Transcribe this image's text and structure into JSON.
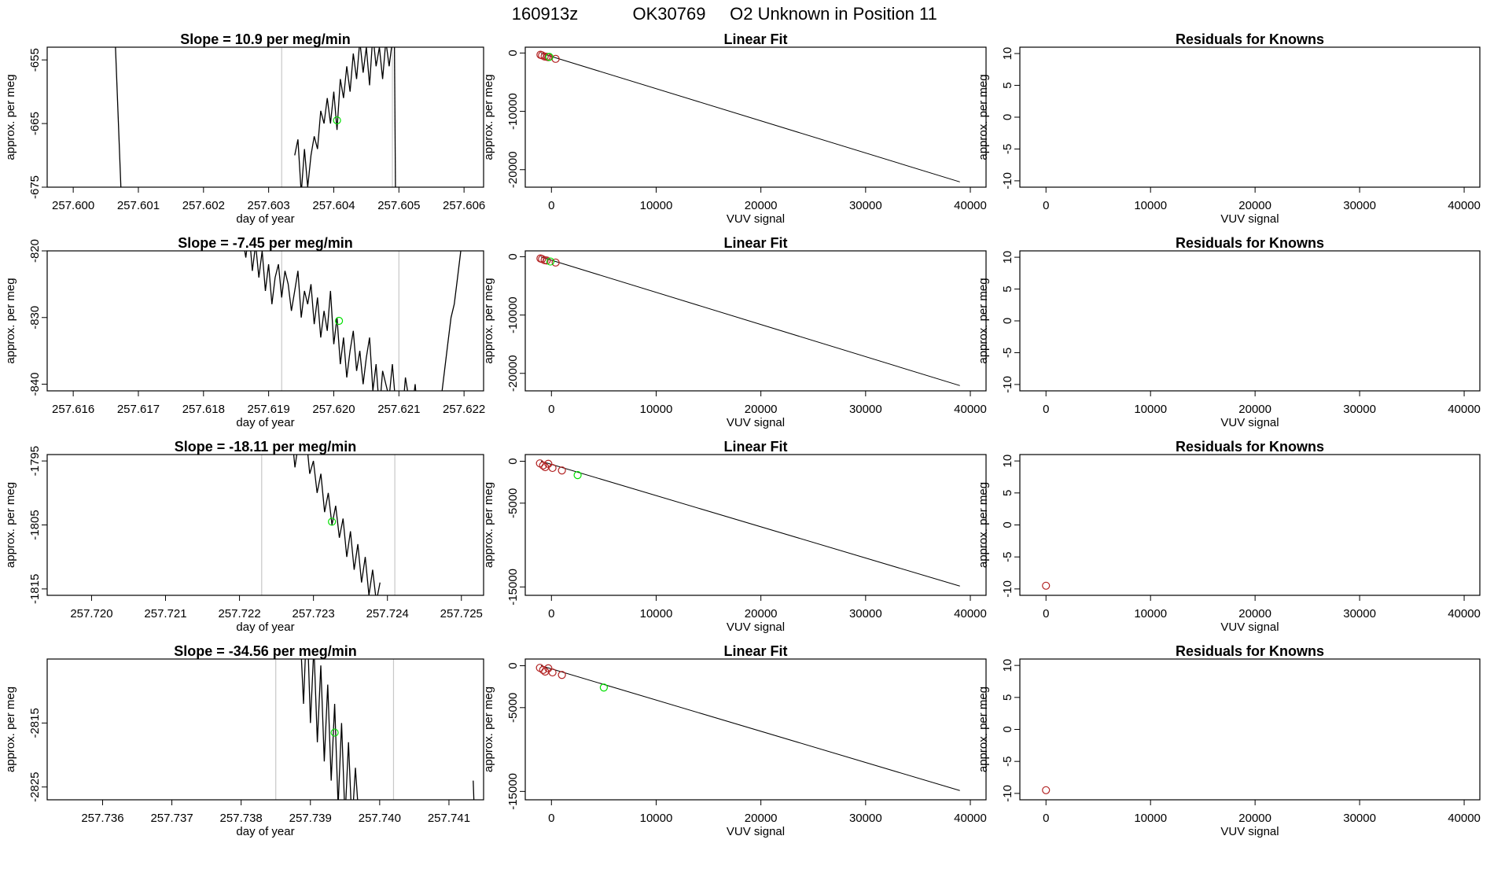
{
  "header": {
    "date": "160913z",
    "tank": "OK30769",
    "description": "O2 Unknown in Position  11"
  },
  "colors": {
    "line": "#000000",
    "vline": "#c8c8c8",
    "known": "#b22222",
    "unknown": "#00e000"
  },
  "chart_data": [
    {
      "type": "line",
      "panel": "timeseries",
      "row": 1,
      "title": "Slope =  10.9  per meg/min",
      "xlabel": "day of year",
      "ylabel": "approx. per meg",
      "xlim": [
        257.5996,
        257.6063
      ],
      "ylim": [
        -675,
        -653
      ],
      "xticks": [
        "257.600",
        "257.601",
        "257.602",
        "257.603",
        "257.604",
        "257.605",
        "257.606"
      ],
      "xtick_values": [
        257.6,
        257.601,
        257.602,
        257.603,
        257.604,
        257.605,
        257.606
      ],
      "yticks": [
        "-675",
        "-665",
        "-655"
      ],
      "ytick_values": [
        -675,
        -665,
        -655
      ],
      "vlines": [
        257.6032,
        257.6049
      ],
      "series": [
        {
          "name": "trace-a",
          "x": [
            257.6006,
            257.60075
          ],
          "y": [
            -640,
            -680
          ]
        },
        {
          "name": "trace-b",
          "x": [
            257.6034,
            257.60345,
            257.6035,
            257.60355,
            257.6036,
            257.60365,
            257.6037,
            257.60375,
            257.6038,
            257.60385,
            257.6039,
            257.60395,
            257.604,
            257.60405,
            257.6041,
            257.60415,
            257.6042,
            257.60425,
            257.6043,
            257.60435,
            257.6044,
            257.60445,
            257.6045,
            257.60455,
            257.6046,
            257.60465,
            257.6047,
            257.60475,
            257.6048,
            257.60485,
            257.6049
          ],
          "y": [
            -670,
            -667.5,
            -676,
            -669,
            -675,
            -670,
            -667,
            -669,
            -663,
            -665,
            -661,
            -665,
            -660,
            -666,
            -658,
            -661,
            -656,
            -660,
            -654,
            -658,
            -652,
            -657,
            -653,
            -659,
            -651,
            -656,
            -653,
            -658,
            -652,
            -656,
            -652
          ]
        },
        {
          "name": "trace-c",
          "x": [
            257.60493,
            257.60495
          ],
          "y": [
            -650,
            -680
          ]
        }
      ],
      "points": [
        {
          "x": 257.60405,
          "y": -664.5,
          "kind": "unknown"
        }
      ]
    },
    {
      "type": "scatter",
      "panel": "fit",
      "row": 1,
      "title": "Linear Fit",
      "xlabel": "VUV signal",
      "ylabel": "approx. per meg",
      "xlim": [
        -2500,
        41500
      ],
      "ylim": [
        -23000,
        1000
      ],
      "xticks": [
        "0",
        "10000",
        "20000",
        "30000",
        "40000"
      ],
      "xtick_values": [
        0,
        10000,
        20000,
        30000,
        40000
      ],
      "yticks": [
        "-20000",
        "-10000",
        "0"
      ],
      "ytick_values": [
        -20000,
        -10000,
        0
      ],
      "fit_line": {
        "x": [
          -1000,
          39000
        ],
        "y": [
          -50,
          -22100
        ]
      },
      "points": [
        {
          "x": -1050,
          "y": -300,
          "kind": "known"
        },
        {
          "x": -900,
          "y": -400,
          "kind": "known"
        },
        {
          "x": -650,
          "y": -600,
          "kind": "known"
        },
        {
          "x": -450,
          "y": -650,
          "kind": "known"
        },
        {
          "x": -300,
          "y": -700,
          "kind": "known"
        },
        {
          "x": 400,
          "y": -1000,
          "kind": "known"
        },
        {
          "x": -200,
          "y": -665,
          "kind": "unknown"
        }
      ]
    },
    {
      "type": "scatter",
      "panel": "residuals",
      "row": 1,
      "title": "Residuals for Knowns",
      "xlabel": "VUV signal",
      "ylabel": "approx. per meg",
      "xlim": [
        -2500,
        41500
      ],
      "ylim": [
        -11,
        11
      ],
      "xticks": [
        "0",
        "10000",
        "20000",
        "30000",
        "40000"
      ],
      "xtick_values": [
        0,
        10000,
        20000,
        30000,
        40000
      ],
      "yticks": [
        "-10",
        "-5",
        "0",
        "5",
        "10"
      ],
      "ytick_values": [
        -10,
        -5,
        0,
        5,
        10
      ],
      "points": []
    },
    {
      "type": "line",
      "panel": "timeseries",
      "row": 2,
      "title": "Slope =  -7.45  per meg/min",
      "xlabel": "day of year",
      "ylabel": "approx. per meg",
      "xlim": [
        257.6156,
        257.6223
      ],
      "ylim": [
        -841,
        -820
      ],
      "xticks": [
        "257.616",
        "257.617",
        "257.618",
        "257.619",
        "257.620",
        "257.621",
        "257.622"
      ],
      "xtick_values": [
        257.616,
        257.617,
        257.618,
        257.619,
        257.62,
        257.621,
        257.622
      ],
      "yticks": [
        "-840",
        "-830",
        "-820"
      ],
      "ytick_values": [
        -840,
        -830,
        -820
      ],
      "vlines": [
        257.6192,
        257.621
      ],
      "series": [
        {
          "name": "trace-a",
          "x": [
            257.6186,
            257.61865,
            257.6187,
            257.61875,
            257.6188,
            257.61885,
            257.6189,
            257.61895,
            257.619,
            257.61905,
            257.6191,
            257.61915,
            257.6192,
            257.61925,
            257.6193,
            257.61935,
            257.6194,
            257.61945,
            257.6195,
            257.61955,
            257.6196,
            257.61965,
            257.6197,
            257.61975,
            257.6198,
            257.61985,
            257.6199,
            257.61995,
            257.62,
            257.62005,
            257.6201,
            257.62015,
            257.6202,
            257.62025,
            257.6203,
            257.62035,
            257.6204,
            257.62045,
            257.6205,
            257.62055,
            257.6206,
            257.62065,
            257.6207,
            257.62075,
            257.6208,
            257.62085,
            257.6209,
            257.62095,
            257.621,
            257.62105,
            257.6211,
            257.62115,
            257.6212,
            257.62125,
            257.6213,
            257.62135,
            257.6214,
            257.62145,
            257.6215
          ],
          "y": [
            -818,
            -821,
            -817,
            -823,
            -819,
            -824,
            -820,
            -826,
            -822,
            -828,
            -824,
            -822,
            -827,
            -823,
            -825,
            -829,
            -826,
            -823,
            -830,
            -826,
            -828,
            -825,
            -831,
            -827,
            -833,
            -829,
            -832,
            -826,
            -834,
            -830,
            -837,
            -833,
            -839,
            -835,
            -832,
            -838,
            -835,
            -840,
            -836,
            -833,
            -841,
            -837,
            -844,
            -838,
            -840,
            -842,
            -837,
            -843,
            -841,
            -845,
            -839,
            -842,
            -844,
            -840,
            -846,
            -843,
            -841,
            -847,
            -843
          ]
        },
        {
          "name": "trace-b",
          "x": [
            257.6216,
            257.62165,
            257.6217,
            257.62175,
            257.6218,
            257.62185,
            257.6219,
            257.62195,
            257.622
          ],
          "y": [
            -845,
            -842,
            -838,
            -834,
            -830,
            -828,
            -824,
            -820,
            -815
          ]
        }
      ],
      "points": [
        {
          "x": 257.62008,
          "y": -830.5,
          "kind": "unknown"
        }
      ]
    },
    {
      "type": "scatter",
      "panel": "fit",
      "row": 2,
      "title": "Linear Fit",
      "xlabel": "VUV signal",
      "ylabel": "approx. per meg",
      "xlim": [
        -2500,
        41500
      ],
      "ylim": [
        -23000,
        1000
      ],
      "xticks": [
        "0",
        "10000",
        "20000",
        "30000",
        "40000"
      ],
      "xtick_values": [
        0,
        10000,
        20000,
        30000,
        40000
      ],
      "yticks": [
        "-20000",
        "-10000",
        "0"
      ],
      "ytick_values": [
        -20000,
        -10000,
        0
      ],
      "fit_line": {
        "x": [
          -1000,
          39000
        ],
        "y": [
          -50,
          -22100
        ]
      },
      "points": [
        {
          "x": -1050,
          "y": -300,
          "kind": "known"
        },
        {
          "x": -900,
          "y": -400,
          "kind": "known"
        },
        {
          "x": -650,
          "y": -600,
          "kind": "known"
        },
        {
          "x": -450,
          "y": -650,
          "kind": "known"
        },
        {
          "x": 400,
          "y": -1000,
          "kind": "known"
        },
        {
          "x": -100,
          "y": -830,
          "kind": "unknown"
        }
      ]
    },
    {
      "type": "scatter",
      "panel": "residuals",
      "row": 2,
      "title": "Residuals for Knowns",
      "xlabel": "VUV signal",
      "ylabel": "approx. per meg",
      "xlim": [
        -2500,
        41500
      ],
      "ylim": [
        -11,
        11
      ],
      "xticks": [
        "0",
        "10000",
        "20000",
        "30000",
        "40000"
      ],
      "xtick_values": [
        0,
        10000,
        20000,
        30000,
        40000
      ],
      "yticks": [
        "-10",
        "-5",
        "0",
        "5",
        "10"
      ],
      "ytick_values": [
        -10,
        -5,
        0,
        5,
        10
      ],
      "points": []
    },
    {
      "type": "line",
      "panel": "timeseries",
      "row": 3,
      "title": "Slope =  -18.11  per meg/min",
      "xlabel": "day of year",
      "ylabel": "approx. per meg",
      "xlim": [
        257.7194,
        257.7253
      ],
      "ylim": [
        -1816,
        -1794
      ],
      "xticks": [
        "257.720",
        "257.721",
        "257.722",
        "257.723",
        "257.724",
        "257.725"
      ],
      "xtick_values": [
        257.72,
        257.721,
        257.722,
        257.723,
        257.724,
        257.725
      ],
      "yticks": [
        "-1815",
        "-1805",
        "-1795"
      ],
      "ytick_values": [
        -1815,
        -1805,
        -1795
      ],
      "vlines": [
        257.7223,
        257.7241
      ],
      "series": [
        {
          "name": "trace-a",
          "x": [
            257.7227,
            257.72275,
            257.7228,
            257.72285,
            257.7229,
            257.72295,
            257.723,
            257.72305,
            257.7231,
            257.72315,
            257.7232,
            257.72325,
            257.7233,
            257.72335,
            257.7234,
            257.72345,
            257.7235,
            257.72355,
            257.7236,
            257.72365,
            257.7237,
            257.72375,
            257.7238,
            257.72385,
            257.7239
          ],
          "y": [
            -1790,
            -1796,
            -1792,
            -1794,
            -1791,
            -1797,
            -1795,
            -1800,
            -1797,
            -1803,
            -1800,
            -1805,
            -1802,
            -1807,
            -1804,
            -1810,
            -1806,
            -1812,
            -1808,
            -1814,
            -1810,
            -1816,
            -1812,
            -1817,
            -1814
          ]
        }
      ],
      "points": [
        {
          "x": 257.72325,
          "y": -1804.5,
          "kind": "unknown"
        }
      ]
    },
    {
      "type": "scatter",
      "panel": "fit",
      "row": 3,
      "title": "Linear Fit",
      "xlabel": "VUV signal",
      "ylabel": "approx. per meg",
      "xlim": [
        -2500,
        41500
      ],
      "ylim": [
        -16000,
        800
      ],
      "xticks": [
        "0",
        "10000",
        "20000",
        "30000",
        "40000"
      ],
      "xtick_values": [
        0,
        10000,
        20000,
        30000,
        40000
      ],
      "yticks": [
        "-15000",
        "-5000",
        "0"
      ],
      "ytick_values": [
        -15000,
        -5000,
        0
      ],
      "fit_line": {
        "x": [
          -1000,
          39000
        ],
        "y": [
          0,
          -14900
        ]
      },
      "points": [
        {
          "x": -1100,
          "y": -250,
          "kind": "known"
        },
        {
          "x": -800,
          "y": -500,
          "kind": "known"
        },
        {
          "x": -600,
          "y": -700,
          "kind": "known"
        },
        {
          "x": -300,
          "y": -300,
          "kind": "known"
        },
        {
          "x": 100,
          "y": -800,
          "kind": "known"
        },
        {
          "x": 1000,
          "y": -1100,
          "kind": "known"
        },
        {
          "x": 2500,
          "y": -1650,
          "kind": "unknown"
        }
      ]
    },
    {
      "type": "scatter",
      "panel": "residuals",
      "row": 3,
      "title": "Residuals for Knowns",
      "xlabel": "VUV signal",
      "ylabel": "approx. per meg",
      "xlim": [
        -2500,
        41500
      ],
      "ylim": [
        -11,
        11
      ],
      "xticks": [
        "0",
        "10000",
        "20000",
        "30000",
        "40000"
      ],
      "xtick_values": [
        0,
        10000,
        20000,
        30000,
        40000
      ],
      "yticks": [
        "-10",
        "-5",
        "0",
        "5",
        "10"
      ],
      "ytick_values": [
        -10,
        -5,
        0,
        5,
        10
      ],
      "points": [
        {
          "x": 0,
          "y": -9.5,
          "kind": "known"
        }
      ]
    },
    {
      "type": "line",
      "panel": "timeseries",
      "row": 4,
      "title": "Slope =  -34.56  per meg/min",
      "xlabel": "day of year",
      "ylabel": "approx. per meg",
      "xlim": [
        257.7352,
        257.7415
      ],
      "ylim": [
        -2827,
        -2805
      ],
      "xticks": [
        "257.736",
        "257.737",
        "257.738",
        "257.739",
        "257.740",
        "257.741"
      ],
      "xtick_values": [
        257.736,
        257.737,
        257.738,
        257.739,
        257.74,
        257.741
      ],
      "yticks": [
        "-2825",
        "-2815"
      ],
      "ytick_values": [
        -2825,
        -2815
      ],
      "vlines": [
        257.7385,
        257.7402
      ],
      "series": [
        {
          "name": "trace-a",
          "x": [
            257.73885,
            257.7389,
            257.73895,
            257.739,
            257.73905,
            257.7391,
            257.73915,
            257.7392,
            257.73925,
            257.7393,
            257.73935,
            257.7394,
            257.73945,
            257.7395,
            257.73955,
            257.7396,
            257.73965,
            257.7397
          ],
          "y": [
            -2800,
            -2812,
            -2798,
            -2815,
            -2803,
            -2818,
            -2806,
            -2821,
            -2809,
            -2824,
            -2812,
            -2828,
            -2815,
            -2830,
            -2818,
            -2831,
            -2822,
            -2830
          ]
        },
        {
          "name": "trace-b",
          "x": [
            257.74135,
            257.74137
          ],
          "y": [
            -2824,
            -2830
          ]
        }
      ],
      "points": [
        {
          "x": 257.73935,
          "y": -2816.5,
          "kind": "unknown"
        }
      ]
    },
    {
      "type": "scatter",
      "panel": "fit",
      "row": 4,
      "title": "Linear Fit",
      "xlabel": "VUV signal",
      "ylabel": "approx. per meg",
      "xlim": [
        -2500,
        41500
      ],
      "ylim": [
        -16000,
        800
      ],
      "xticks": [
        "0",
        "10000",
        "20000",
        "30000",
        "40000"
      ],
      "xtick_values": [
        0,
        10000,
        20000,
        30000,
        40000
      ],
      "yticks": [
        "-15000",
        "-5000",
        "0"
      ],
      "ytick_values": [
        -15000,
        -5000,
        0
      ],
      "fit_line": {
        "x": [
          -1000,
          39000
        ],
        "y": [
          0,
          -14900
        ]
      },
      "points": [
        {
          "x": -1100,
          "y": -250,
          "kind": "known"
        },
        {
          "x": -800,
          "y": -500,
          "kind": "known"
        },
        {
          "x": -600,
          "y": -700,
          "kind": "known"
        },
        {
          "x": -300,
          "y": -300,
          "kind": "known"
        },
        {
          "x": 100,
          "y": -800,
          "kind": "known"
        },
        {
          "x": 1000,
          "y": -1100,
          "kind": "known"
        },
        {
          "x": 5000,
          "y": -2600,
          "kind": "unknown"
        }
      ]
    },
    {
      "type": "scatter",
      "panel": "residuals",
      "row": 4,
      "title": "Residuals for Knowns",
      "xlabel": "VUV signal",
      "ylabel": "approx. per meg",
      "xlim": [
        -2500,
        41500
      ],
      "ylim": [
        -11,
        11
      ],
      "xticks": [
        "0",
        "10000",
        "20000",
        "30000",
        "40000"
      ],
      "xtick_values": [
        0,
        10000,
        20000,
        30000,
        40000
      ],
      "yticks": [
        "-10",
        "-5",
        "0",
        "5",
        "10"
      ],
      "ytick_values": [
        -10,
        -5,
        0,
        5,
        10
      ],
      "points": [
        {
          "x": 0,
          "y": -9.5,
          "kind": "known"
        }
      ]
    }
  ]
}
